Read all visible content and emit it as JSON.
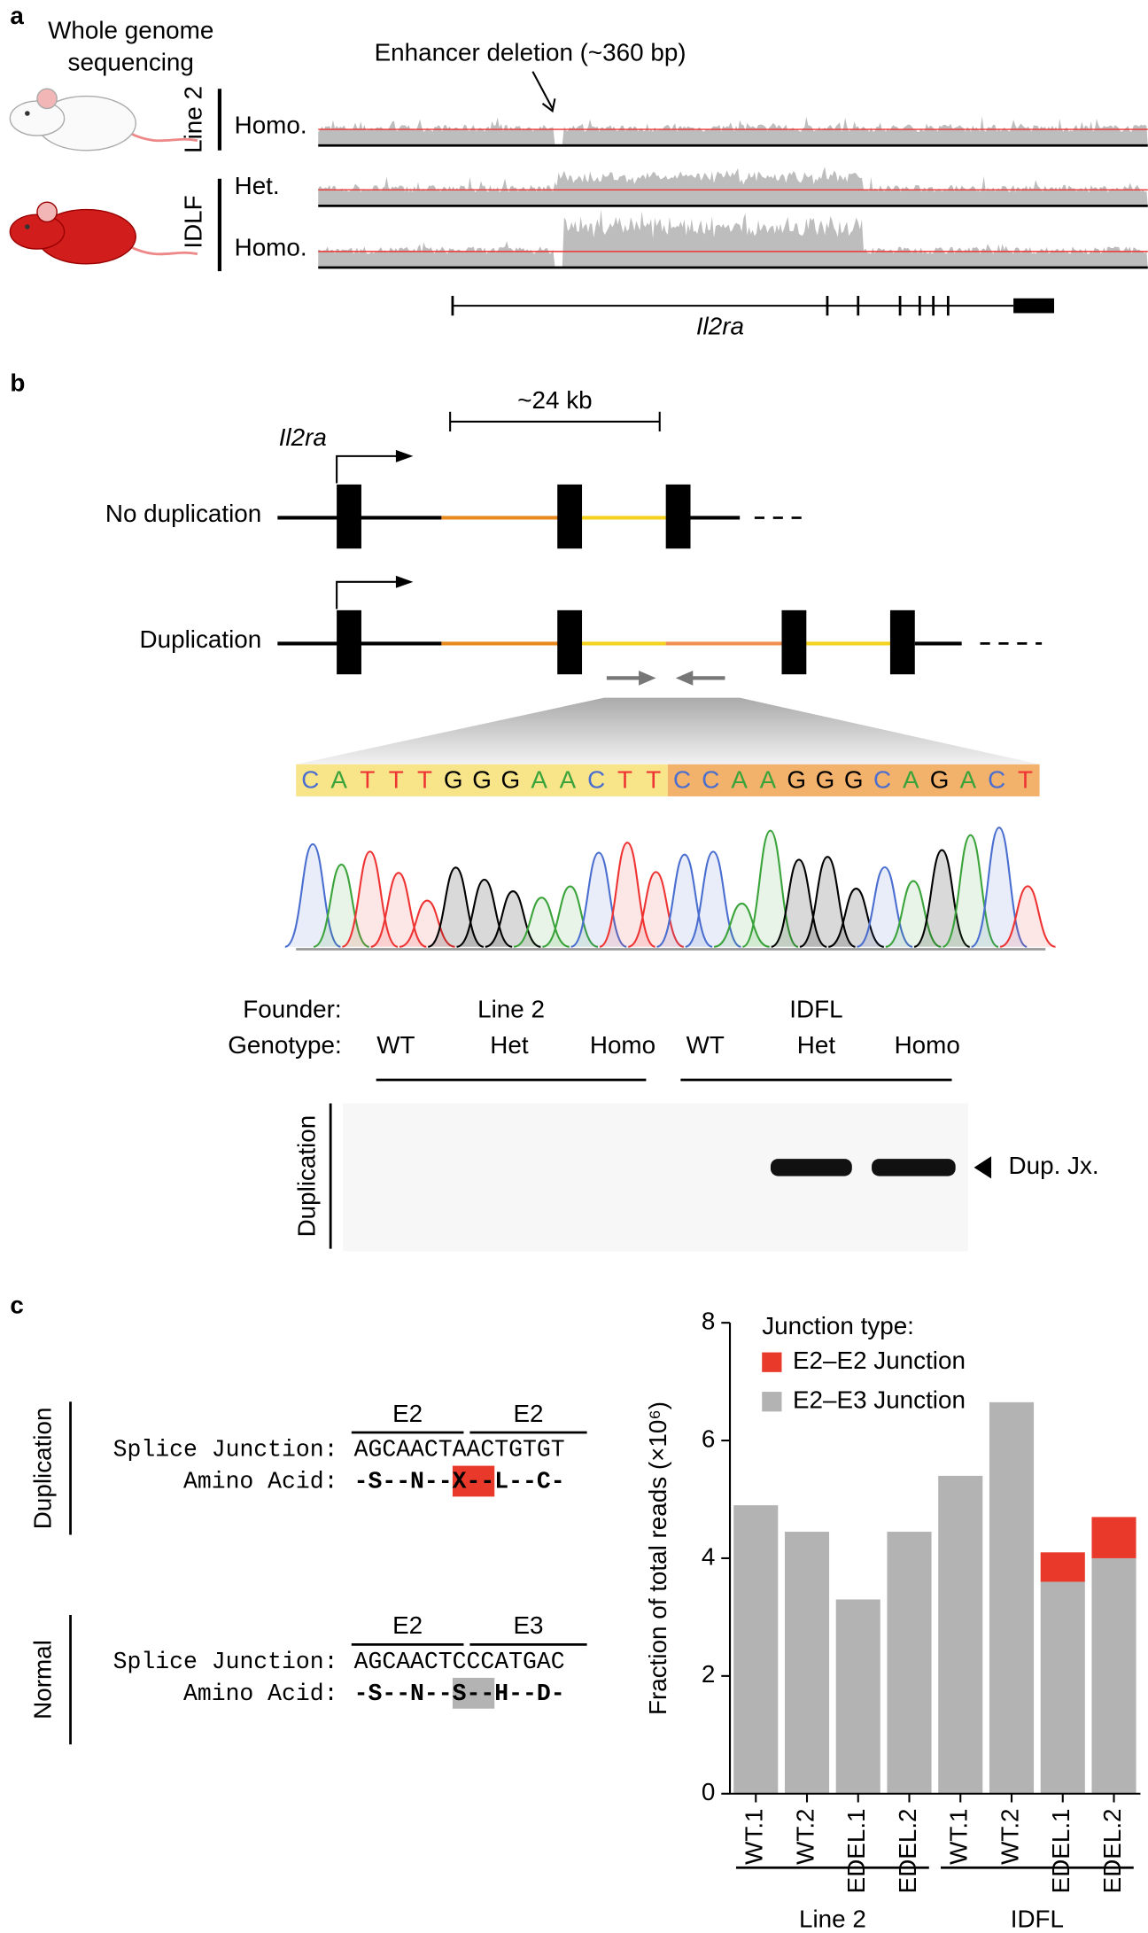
{
  "panel_a": {
    "letter": "a",
    "title_lines": [
      "Whole genome",
      "sequencing"
    ],
    "annotation": "Enhancer deletion (~360 bp)",
    "lines": [
      {
        "name": "Line 2",
        "tracks": [
          "Homo."
        ]
      },
      {
        "name": "IDLF",
        "tracks": [
          "Het.",
          "Homo."
        ]
      }
    ],
    "gene": "Il2ra"
  },
  "panel_b": {
    "letter": "b",
    "scale": "~24 kb",
    "gene": "Il2ra",
    "rows": [
      {
        "label": "No duplication",
        "exons": [
          "1",
          "2",
          "3"
        ]
      },
      {
        "label": "Duplication",
        "exons": [
          "1",
          "2",
          "2",
          "3"
        ]
      }
    ],
    "sequence": [
      "CATTTGGGAACTT",
      "CCAAGGGCAGACT"
    ],
    "gel": {
      "founder_label": "Founder:",
      "genotype_label": "Genotype:",
      "founders": [
        {
          "name": "Line 2",
          "genotypes": [
            "WT",
            "Het",
            "Homo"
          ]
        },
        {
          "name": "IDFL",
          "genotypes": [
            "WT",
            "Het",
            "Homo"
          ]
        }
      ],
      "lane_label": "Duplication",
      "band_label": "Dup. Jx."
    }
  },
  "panel_c": {
    "letter": "c",
    "junctions": [
      {
        "label": "Duplication",
        "exons": [
          "E2",
          "E2"
        ],
        "splice_label": "Splice Junction:",
        "splice": "AGCAACTAACTGTGT",
        "aa_label": "Amino Acid:",
        "aa": "-S--N--X--L--C-"
      },
      {
        "label": "Normal",
        "exons": [
          "E2",
          "E3"
        ],
        "splice_label": "Splice Junction:",
        "splice": "AGCAACTCCCATGAC",
        "aa_label": "Amino Acid:",
        "aa": "-S--N--S--H--D-"
      }
    ]
  },
  "chart_data": {
    "type": "bar",
    "stacked": true,
    "ylabel": "Fraction of total reads (×10⁶)",
    "legend_title": "Junction type:",
    "categories": [
      "WT.1",
      "WT.2",
      "EDEL.1",
      "EDEL.2",
      "WT.1",
      "WT.2",
      "EDEL.1",
      "EDEL.2"
    ],
    "category_groups": [
      "Line 2",
      "Line 2",
      "Line 2",
      "Line 2",
      "IDFL",
      "IDFL",
      "IDFL",
      "IDFL"
    ],
    "series": [
      {
        "name": "E2–E2 Junction",
        "color": "#e8392b",
        "values": [
          0,
          0,
          0,
          0,
          0,
          0,
          0.5,
          0.7
        ]
      },
      {
        "name": "E2–E3 Junction",
        "color": "#b3b3b3",
        "values": [
          4.9,
          4.45,
          3.3,
          4.45,
          5.4,
          6.65,
          3.6,
          4.0
        ]
      }
    ],
    "ylim": [
      0,
      8
    ],
    "yticks": [
      0,
      2,
      4,
      6,
      8
    ]
  }
}
